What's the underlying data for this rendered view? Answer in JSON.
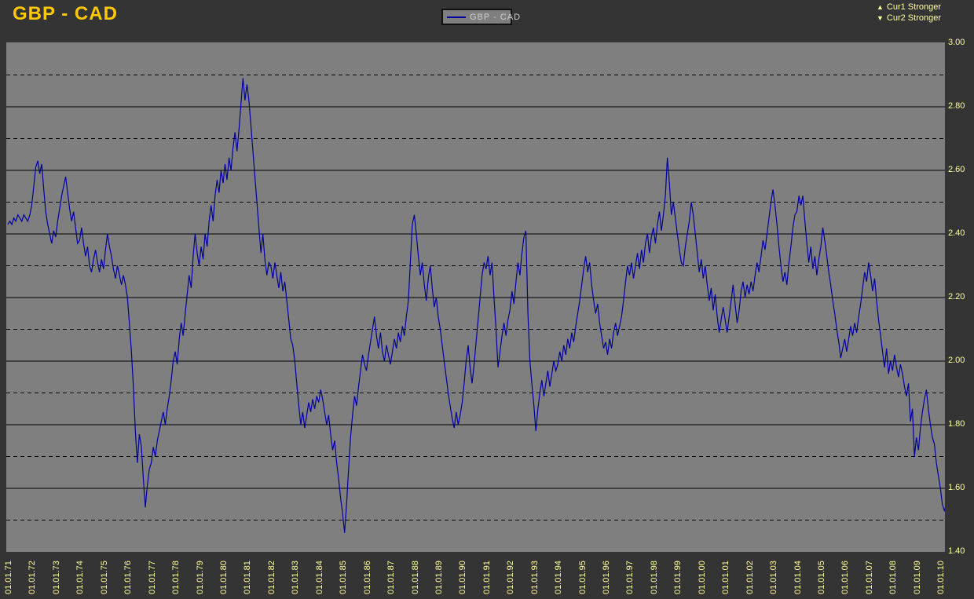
{
  "window": {
    "title": "GBP - CAD"
  },
  "legend": {
    "label": "GBP - CAD"
  },
  "direction_key": {
    "cur1": {
      "arrow": "▲",
      "label": "Cur1 Stronger"
    },
    "cur2": {
      "arrow": "▼",
      "label": "Cur2 Stronger"
    }
  },
  "colors": {
    "background": "#343434",
    "plot_background": "#7f7f7f",
    "grid": "#000000",
    "series_line": "#0000a0",
    "title_text": "#ffc800",
    "axis_text": "#ffff9c",
    "legend_text": "#cfcfcf"
  },
  "chart_data": {
    "type": "line",
    "title": "GBP - CAD",
    "xlabel": "",
    "ylabel": "",
    "ylim": [
      1.4,
      3.0
    ],
    "grid": "horizontal-only",
    "legend_position": "top-center",
    "x_start": "01.01.1971",
    "x_step_months": 1,
    "x_tick_labels": [
      "01.01.71",
      "01.01.72",
      "01.01.73",
      "01.01.74",
      "01.01.75",
      "01.01.76",
      "01.01.77",
      "01.01.78",
      "01.01.79",
      "01.01.80",
      "01.01.81",
      "01.01.82",
      "01.01.83",
      "01.01.84",
      "01.01.85",
      "01.01.86",
      "01.01.87",
      "01.01.88",
      "01.01.89",
      "01.01.90",
      "01.01.91",
      "01.01.92",
      "01.01.93",
      "01.01.94",
      "01.01.95",
      "01.01.96",
      "01.01.97",
      "01.01.98",
      "01.01.99",
      "01.01.00",
      "01.01.01",
      "01.01.02",
      "01.01.03",
      "01.01.04",
      "01.01.05",
      "01.01.06",
      "01.01.07",
      "01.01.08",
      "01.01.09",
      "01.01.10"
    ],
    "y_tick_labels": [
      "3.00",
      "2.80",
      "2.60",
      "2.40",
      "2.20",
      "2.00",
      "1.80",
      "1.60",
      "1.40"
    ],
    "y_tick_values": [
      3.0,
      2.8,
      2.6,
      2.4,
      2.2,
      2.0,
      1.8,
      1.6,
      1.4
    ],
    "grid_solid_values": [
      2.8,
      2.6,
      2.4,
      2.2,
      2.0,
      1.8,
      1.6
    ],
    "grid_dashed_values": [
      2.9,
      2.7,
      2.5,
      2.3,
      2.1,
      1.9,
      1.7,
      1.5
    ],
    "series": [
      {
        "name": "GBP - CAD",
        "color": "#0000a0",
        "start_year": 1971,
        "interval": "monthly",
        "values": [
          2.43,
          2.44,
          2.43,
          2.45,
          2.44,
          2.46,
          2.45,
          2.44,
          2.46,
          2.45,
          2.44,
          2.46,
          2.49,
          2.55,
          2.61,
          2.63,
          2.59,
          2.62,
          2.54,
          2.47,
          2.43,
          2.4,
          2.37,
          2.41,
          2.39,
          2.44,
          2.48,
          2.52,
          2.55,
          2.58,
          2.53,
          2.48,
          2.44,
          2.47,
          2.42,
          2.37,
          2.38,
          2.42,
          2.37,
          2.33,
          2.36,
          2.3,
          2.28,
          2.32,
          2.35,
          2.31,
          2.28,
          2.32,
          2.29,
          2.35,
          2.4,
          2.36,
          2.33,
          2.29,
          2.26,
          2.3,
          2.27,
          2.24,
          2.27,
          2.24,
          2.2,
          2.12,
          2.03,
          1.92,
          1.78,
          1.68,
          1.77,
          1.73,
          1.63,
          1.54,
          1.61,
          1.66,
          1.68,
          1.73,
          1.7,
          1.75,
          1.78,
          1.81,
          1.84,
          1.8,
          1.85,
          1.89,
          1.94,
          2.0,
          2.03,
          1.99,
          2.07,
          2.12,
          2.08,
          2.15,
          2.21,
          2.27,
          2.23,
          2.33,
          2.4,
          2.34,
          2.3,
          2.36,
          2.32,
          2.4,
          2.36,
          2.44,
          2.49,
          2.44,
          2.52,
          2.57,
          2.53,
          2.6,
          2.56,
          2.62,
          2.57,
          2.64,
          2.6,
          2.67,
          2.72,
          2.66,
          2.73,
          2.81,
          2.89,
          2.82,
          2.87,
          2.82,
          2.74,
          2.66,
          2.58,
          2.5,
          2.42,
          2.34,
          2.4,
          2.32,
          2.27,
          2.31,
          2.3,
          2.26,
          2.31,
          2.27,
          2.23,
          2.28,
          2.22,
          2.25,
          2.19,
          2.13,
          2.07,
          2.05,
          2.0,
          1.93,
          1.86,
          1.8,
          1.84,
          1.79,
          1.83,
          1.87,
          1.84,
          1.88,
          1.85,
          1.89,
          1.87,
          1.91,
          1.88,
          1.84,
          1.8,
          1.83,
          1.77,
          1.72,
          1.75,
          1.68,
          1.63,
          1.57,
          1.52,
          1.46,
          1.55,
          1.66,
          1.76,
          1.83,
          1.89,
          1.86,
          1.92,
          1.97,
          2.02,
          1.99,
          1.97,
          2.02,
          2.06,
          2.1,
          2.14,
          2.08,
          2.04,
          2.09,
          2.03,
          2.0,
          2.05,
          2.02,
          1.99,
          2.03,
          2.07,
          2.04,
          2.09,
          2.06,
          2.11,
          2.08,
          2.14,
          2.19,
          2.31,
          2.43,
          2.46,
          2.4,
          2.33,
          2.27,
          2.31,
          2.24,
          2.19,
          2.26,
          2.3,
          2.23,
          2.17,
          2.2,
          2.14,
          2.1,
          2.05,
          2.0,
          1.95,
          1.9,
          1.86,
          1.82,
          1.79,
          1.84,
          1.8,
          1.83,
          1.87,
          1.93,
          2.0,
          2.05,
          1.98,
          1.93,
          1.99,
          2.06,
          2.13,
          2.2,
          2.27,
          2.31,
          2.29,
          2.33,
          2.27,
          2.31,
          2.2,
          2.1,
          1.98,
          2.03,
          2.08,
          2.12,
          2.08,
          2.13,
          2.16,
          2.22,
          2.18,
          2.25,
          2.31,
          2.27,
          2.34,
          2.39,
          2.41,
          2.15,
          2.0,
          1.93,
          1.86,
          1.78,
          1.85,
          1.9,
          1.94,
          1.89,
          1.93,
          1.97,
          1.92,
          1.96,
          2.0,
          1.97,
          1.99,
          2.03,
          2.0,
          2.05,
          2.02,
          2.07,
          2.04,
          2.09,
          2.06,
          2.11,
          2.15,
          2.19,
          2.24,
          2.29,
          2.33,
          2.28,
          2.31,
          2.24,
          2.19,
          2.15,
          2.18,
          2.12,
          2.08,
          2.04,
          2.06,
          2.02,
          2.07,
          2.04,
          2.09,
          2.12,
          2.08,
          2.11,
          2.14,
          2.19,
          2.25,
          2.3,
          2.27,
          2.31,
          2.26,
          2.3,
          2.34,
          2.29,
          2.35,
          2.31,
          2.37,
          2.4,
          2.34,
          2.39,
          2.42,
          2.37,
          2.43,
          2.47,
          2.41,
          2.46,
          2.52,
          2.64,
          2.56,
          2.46,
          2.5,
          2.45,
          2.4,
          2.35,
          2.31,
          2.3,
          2.36,
          2.4,
          2.44,
          2.5,
          2.46,
          2.4,
          2.34,
          2.28,
          2.32,
          2.26,
          2.3,
          2.24,
          2.19,
          2.23,
          2.16,
          2.21,
          2.14,
          2.09,
          2.13,
          2.17,
          2.13,
          2.09,
          2.14,
          2.19,
          2.24,
          2.18,
          2.12,
          2.16,
          2.22,
          2.25,
          2.2,
          2.24,
          2.21,
          2.25,
          2.22,
          2.27,
          2.31,
          2.28,
          2.33,
          2.38,
          2.35,
          2.4,
          2.45,
          2.5,
          2.54,
          2.49,
          2.43,
          2.36,
          2.3,
          2.25,
          2.28,
          2.24,
          2.31,
          2.36,
          2.42,
          2.46,
          2.47,
          2.52,
          2.49,
          2.52,
          2.44,
          2.37,
          2.31,
          2.36,
          2.29,
          2.33,
          2.27,
          2.32,
          2.36,
          2.42,
          2.38,
          2.33,
          2.28,
          2.24,
          2.19,
          2.15,
          2.1,
          2.06,
          2.01,
          2.04,
          2.07,
          2.03,
          2.07,
          2.11,
          2.08,
          2.12,
          2.09,
          2.14,
          2.18,
          2.23,
          2.28,
          2.25,
          2.31,
          2.27,
          2.22,
          2.26,
          2.19,
          2.13,
          2.08,
          2.03,
          1.98,
          2.04,
          1.96,
          2.0,
          1.97,
          2.02,
          1.98,
          1.95,
          1.99,
          1.96,
          1.92,
          1.89,
          1.93,
          1.81,
          1.85,
          1.7,
          1.76,
          1.72,
          1.79,
          1.84,
          1.88,
          1.91,
          1.85,
          1.8,
          1.76,
          1.74,
          1.68,
          1.64,
          1.6,
          1.55,
          1.53,
          1.55
        ]
      }
    ]
  }
}
